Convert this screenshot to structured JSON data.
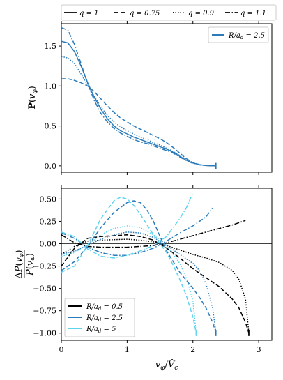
{
  "colors": {
    "black": "#000000",
    "mid_blue": "#2b7bba",
    "light_cyan": "#5fd3ec",
    "zero_line": "#000000"
  },
  "top_legend": {
    "entries": [
      {
        "label": "q = 1",
        "style": "solid"
      },
      {
        "label": "q = 0.75",
        "style": "dashed"
      },
      {
        "label": "q = 0.9",
        "style": "dotted"
      },
      {
        "label": "q = 1.1",
        "style": "dashdot"
      }
    ]
  },
  "chart_data": [
    {
      "type": "line",
      "panel": "top",
      "ylabel": "P(v_φ)",
      "xlim": [
        0,
        3.2
      ],
      "ylim": [
        -0.08,
        1.78
      ],
      "x_ticks": [
        0,
        1,
        2,
        3
      ],
      "y_ticks": [
        0.0,
        0.5,
        1.0,
        1.5
      ],
      "y_tick_labels": [
        "0.0",
        "0.5",
        "1.0",
        "1.5"
      ],
      "legend": {
        "position": "top-right",
        "entries": [
          {
            "label": "R/a_d = 2.5",
            "color": "#2b7bba"
          }
        ]
      },
      "series": [
        {
          "q": "1",
          "style": "solid",
          "color": "#2b7bba",
          "x": [
            0,
            0.1,
            0.2,
            0.3,
            0.4,
            0.5,
            0.6,
            0.7,
            0.8,
            0.9,
            1.0,
            1.1,
            1.2,
            1.3,
            1.4,
            1.5,
            1.6,
            1.7,
            1.8,
            1.9,
            2.0,
            2.1,
            2.2,
            2.3,
            2.35
          ],
          "y": [
            1.56,
            1.54,
            1.43,
            1.25,
            1.04,
            0.86,
            0.71,
            0.59,
            0.5,
            0.44,
            0.4,
            0.36,
            0.33,
            0.3,
            0.27,
            0.24,
            0.21,
            0.17,
            0.12,
            0.07,
            0.035,
            0.015,
            0.005,
            0.001,
            0.0
          ]
        },
        {
          "q": "0.75",
          "style": "dashed",
          "color": "#2b7bba",
          "x": [
            0,
            0.1,
            0.2,
            0.3,
            0.4,
            0.5,
            0.6,
            0.7,
            0.8,
            0.9,
            1.0,
            1.1,
            1.2,
            1.3,
            1.4,
            1.5,
            1.6,
            1.7,
            1.8,
            1.9,
            2.0,
            2.1,
            2.2,
            2.3,
            2.35
          ],
          "y": [
            1.09,
            1.09,
            1.07,
            1.04,
            1.0,
            0.93,
            0.84,
            0.75,
            0.67,
            0.6,
            0.55,
            0.5,
            0.46,
            0.42,
            0.38,
            0.34,
            0.29,
            0.23,
            0.16,
            0.09,
            0.04,
            0.015,
            0.005,
            0.001,
            0.0
          ]
        },
        {
          "q": "0.9",
          "style": "dotted",
          "color": "#2b7bba",
          "x": [
            0,
            0.1,
            0.2,
            0.3,
            0.4,
            0.5,
            0.6,
            0.7,
            0.8,
            0.9,
            1.0,
            1.1,
            1.2,
            1.3,
            1.4,
            1.5,
            1.6,
            1.7,
            1.8,
            1.9,
            2.0,
            2.1,
            2.2,
            2.3,
            2.35
          ],
          "y": [
            1.37,
            1.35,
            1.28,
            1.15,
            1.01,
            0.87,
            0.74,
            0.63,
            0.55,
            0.49,
            0.44,
            0.4,
            0.36,
            0.33,
            0.29,
            0.26,
            0.22,
            0.18,
            0.13,
            0.08,
            0.04,
            0.015,
            0.005,
            0.001,
            0.0
          ]
        },
        {
          "q": "1.1",
          "style": "dashdot",
          "color": "#2b7bba",
          "x": [
            0,
            0.1,
            0.2,
            0.3,
            0.4,
            0.5,
            0.6,
            0.7,
            0.8,
            0.9,
            1.0,
            1.1,
            1.2,
            1.3,
            1.4,
            1.5,
            1.6,
            1.7,
            1.8,
            1.9,
            2.0,
            2.1,
            2.2,
            2.3,
            2.35
          ],
          "y": [
            1.73,
            1.7,
            1.52,
            1.28,
            1.03,
            0.82,
            0.66,
            0.55,
            0.47,
            0.41,
            0.37,
            0.33,
            0.3,
            0.28,
            0.25,
            0.22,
            0.19,
            0.16,
            0.11,
            0.065,
            0.03,
            0.012,
            0.004,
            0.001,
            0.0
          ]
        }
      ]
    },
    {
      "type": "line",
      "panel": "bottom",
      "ylabel": "ΔP(v_φ) / P(v_φ)",
      "xlabel": "v_φ / V̂_c",
      "xlim": [
        0,
        3.2
      ],
      "ylim": [
        -1.08,
        0.62
      ],
      "x_ticks": [
        0,
        1,
        2,
        3
      ],
      "x_tick_labels": [
        "0",
        "1",
        "2",
        "3"
      ],
      "y_ticks": [
        -1.0,
        -0.75,
        -0.5,
        -0.25,
        0.0,
        0.25,
        0.5
      ],
      "y_tick_labels": [
        "−1.00",
        "−0.75",
        "−0.50",
        "−0.25",
        "0.00",
        "0.25",
        "0.50"
      ],
      "zero_line": true,
      "legend": {
        "position": "bottom-left",
        "entries": [
          {
            "label": "R/a_d = 0.5",
            "color": "#000000"
          },
          {
            "label": "R/a_d = 2.5",
            "color": "#2b7bba"
          },
          {
            "label": "R/a_d = 5",
            "color": "#5fd3ec"
          }
        ]
      },
      "series": [
        {
          "R_over_ad": "0.5",
          "q": "0.75",
          "style": "dashed",
          "color": "#000000",
          "x": [
            0,
            0.2,
            0.4,
            0.6,
            0.8,
            1.0,
            1.2,
            1.4,
            1.6,
            1.8,
            2.0,
            2.2,
            2.4,
            2.6,
            2.7,
            2.8,
            2.85
          ],
          "y": [
            -0.25,
            -0.05,
            0.06,
            0.08,
            0.09,
            0.1,
            0.08,
            0.04,
            -0.05,
            -0.16,
            -0.28,
            -0.38,
            -0.48,
            -0.62,
            -0.72,
            -0.88,
            -1.0
          ]
        },
        {
          "R_over_ad": "0.5",
          "q": "0.9",
          "style": "dotted",
          "color": "#000000",
          "x": [
            0,
            0.2,
            0.4,
            0.6,
            0.8,
            1.0,
            1.2,
            1.4,
            1.6,
            1.8,
            2.0,
            2.2,
            2.4,
            2.6,
            2.7,
            2.8,
            2.85
          ],
          "y": [
            -0.12,
            -0.03,
            0.03,
            0.04,
            0.045,
            0.05,
            0.04,
            0.02,
            -0.02,
            -0.07,
            -0.12,
            -0.16,
            -0.21,
            -0.3,
            -0.4,
            -0.62,
            -1.0
          ]
        },
        {
          "R_over_ad": "0.5",
          "q": "1.1",
          "style": "dashdot",
          "color": "#000000",
          "x": [
            0,
            0.2,
            0.4,
            0.6,
            0.8,
            1.0,
            1.2,
            1.4,
            1.6,
            1.8,
            2.0,
            2.2,
            2.4,
            2.6,
            2.8
          ],
          "y": [
            0.1,
            0.01,
            -0.03,
            -0.04,
            -0.04,
            -0.04,
            -0.03,
            -0.02,
            0.01,
            0.05,
            0.09,
            0.13,
            0.17,
            0.21,
            0.26
          ]
        },
        {
          "R_over_ad": "2.5",
          "q": "0.75",
          "style": "dashed",
          "color": "#2b7bba",
          "x": [
            0,
            0.2,
            0.4,
            0.6,
            0.8,
            1.0,
            1.1,
            1.2,
            1.3,
            1.4,
            1.5,
            1.6,
            1.8,
            2.0,
            2.1,
            2.2,
            2.3,
            2.35
          ],
          "y": [
            -0.3,
            -0.2,
            -0.03,
            0.18,
            0.35,
            0.46,
            0.48,
            0.46,
            0.38,
            0.25,
            0.08,
            -0.08,
            -0.32,
            -0.5,
            -0.6,
            -0.72,
            -0.88,
            -1.0
          ]
        },
        {
          "R_over_ad": "2.5",
          "q": "0.9",
          "style": "dotted",
          "color": "#2b7bba",
          "x": [
            0,
            0.2,
            0.4,
            0.6,
            0.8,
            1.0,
            1.2,
            1.4,
            1.6,
            1.8,
            2.0,
            2.1,
            2.2,
            2.3,
            2.35
          ],
          "y": [
            -0.12,
            -0.08,
            -0.02,
            0.05,
            0.1,
            0.13,
            0.12,
            0.07,
            -0.02,
            -0.12,
            -0.22,
            -0.3,
            -0.45,
            -0.72,
            -1.0
          ]
        },
        {
          "R_over_ad": "2.5",
          "q": "1.1",
          "style": "dashdot",
          "color": "#2b7bba",
          "x": [
            0,
            0.2,
            0.4,
            0.6,
            0.8,
            1.0,
            1.2,
            1.4,
            1.6,
            1.8,
            2.0,
            2.2,
            2.3
          ],
          "y": [
            0.12,
            0.06,
            -0.04,
            -0.1,
            -0.13,
            -0.13,
            -0.1,
            -0.05,
            0.03,
            0.12,
            0.2,
            0.3,
            0.4
          ]
        },
        {
          "R_over_ad": "5",
          "q": "0.75",
          "style": "dashed",
          "color": "#5fd3ec",
          "x": [
            0,
            0.2,
            0.4,
            0.6,
            0.8,
            0.9,
            1.0,
            1.1,
            1.2,
            1.4,
            1.6,
            1.7,
            1.8,
            1.9,
            2.0,
            2.05
          ],
          "y": [
            -0.32,
            -0.25,
            -0.02,
            0.28,
            0.48,
            0.52,
            0.5,
            0.43,
            0.33,
            0.1,
            -0.1,
            -0.24,
            -0.4,
            -0.58,
            -0.82,
            -1.0
          ]
        },
        {
          "R_over_ad": "5",
          "q": "0.9",
          "style": "dotted",
          "color": "#5fd3ec",
          "x": [
            0,
            0.2,
            0.4,
            0.6,
            0.8,
            1.0,
            1.2,
            1.4,
            1.6,
            1.8,
            1.9,
            2.0,
            2.05
          ],
          "y": [
            -0.14,
            -0.1,
            -0.01,
            0.1,
            0.17,
            0.2,
            0.18,
            0.1,
            -0.02,
            -0.22,
            -0.38,
            -0.64,
            -1.0
          ]
        },
        {
          "R_over_ad": "5",
          "q": "1.1",
          "style": "dashdot",
          "color": "#5fd3ec",
          "x": [
            0,
            0.2,
            0.4,
            0.6,
            0.8,
            1.0,
            1.2,
            1.4,
            1.6,
            1.8,
            1.9,
            2.0
          ],
          "y": [
            0.13,
            0.08,
            -0.06,
            -0.14,
            -0.16,
            -0.13,
            -0.08,
            -0.02,
            0.08,
            0.28,
            0.4,
            0.57
          ]
        }
      ]
    }
  ]
}
